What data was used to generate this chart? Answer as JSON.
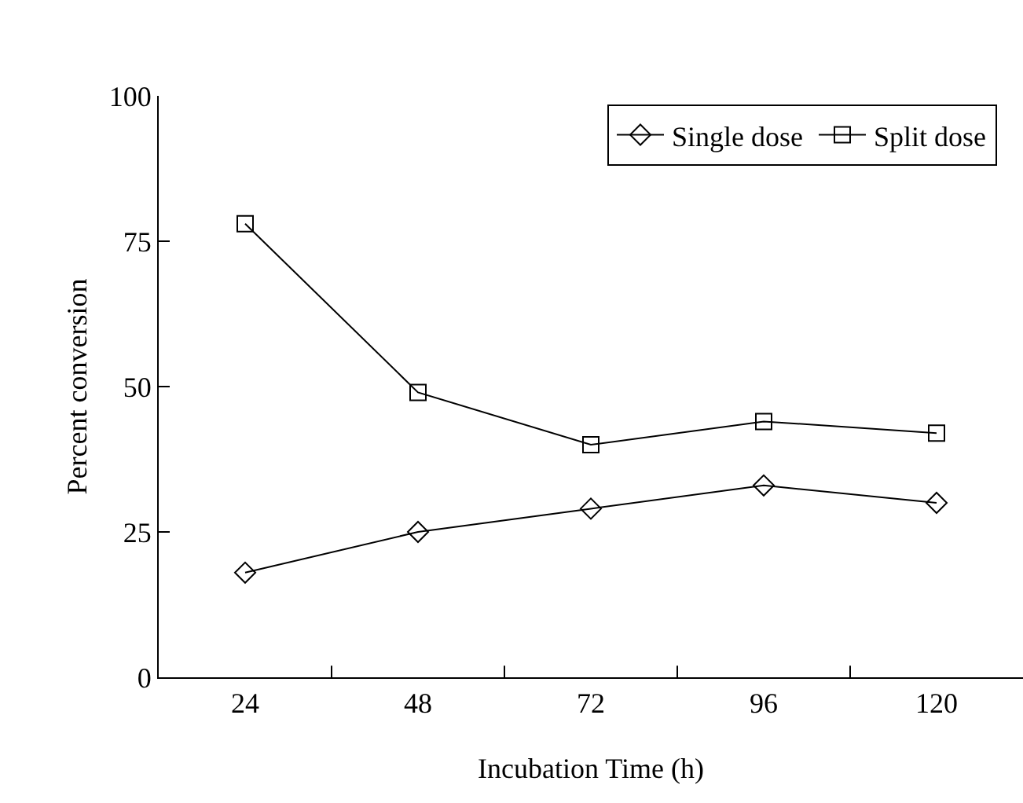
{
  "chart_data": {
    "type": "line",
    "xlabel": "Incubation Time (h)",
    "ylabel": "Percent conversion",
    "categories": [
      "24",
      "48",
      "72",
      "96",
      "120"
    ],
    "series": [
      {
        "name": "Single dose",
        "color": "#000000",
        "marker": "diamond",
        "values": [
          18,
          25,
          29,
          33,
          30
        ]
      },
      {
        "name": "Split dose",
        "color": "#000000",
        "marker": "square",
        "values": [
          78,
          49,
          40,
          44,
          42
        ]
      }
    ],
    "ylim": [
      0,
      100
    ],
    "yticks": [
      0,
      25,
      50,
      75,
      100
    ],
    "grid": false,
    "legend": "top right",
    "line_style": "solid"
  }
}
